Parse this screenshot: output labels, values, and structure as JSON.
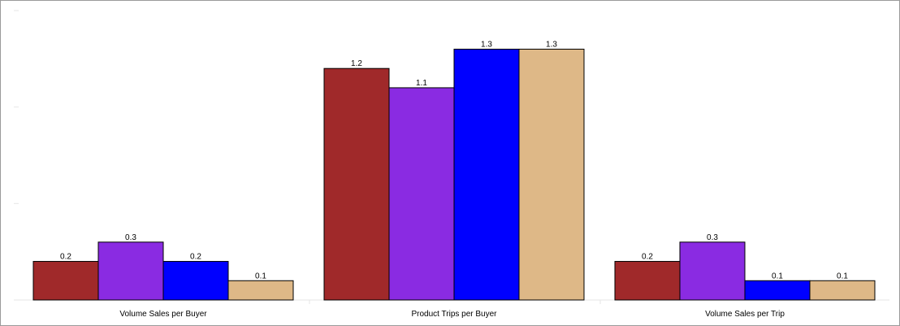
{
  "chart_data": {
    "type": "bar",
    "categories": [
      "Volume Sales per Buyer",
      "Product Trips per Buyer",
      "Volume Sales per Trip"
    ],
    "series": [
      {
        "color": "#a0292a",
        "values": [
          0.2,
          1.2,
          0.2
        ],
        "labels": [
          "0.2",
          "1.2",
          "0.2"
        ]
      },
      {
        "color": "#8a2be2",
        "values": [
          0.3,
          1.1,
          0.3
        ],
        "labels": [
          "0.3",
          "1.1",
          "0.3"
        ]
      },
      {
        "color": "#0000ff",
        "values": [
          0.2,
          1.3,
          0.1
        ],
        "labels": [
          "0.2",
          "1.3",
          "0.1"
        ]
      },
      {
        "color": "#deb887",
        "values": [
          0.1,
          1.3,
          0.1
        ],
        "labels": [
          "0.1",
          "1.3",
          "0.1"
        ]
      }
    ],
    "ylim": [
      0,
      1.5
    ],
    "grid": false,
    "legend": "none",
    "title": "",
    "xlabel": "",
    "ylabel": ""
  }
}
